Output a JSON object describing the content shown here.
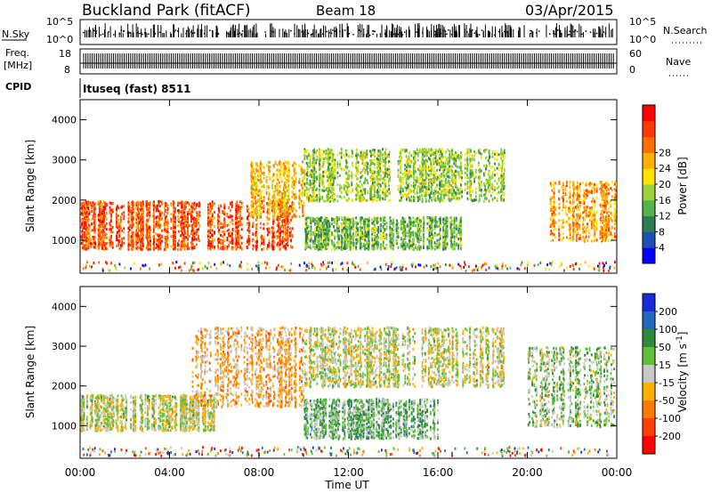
{
  "header": {
    "site": "Buckland Park (fitACF)",
    "beam": "Beam 18",
    "date": "03/Apr/2015"
  },
  "top_labels": {
    "nsky": "N.Sky",
    "nsearch": "N.Search",
    "freq": "Freq.",
    "freq_unit": "[MHz]",
    "nave": "Nave",
    "cpid": "CPID",
    "cpid_value": "Ituseq (fast) 8511",
    "noise_ticks": [
      "10^5",
      "10^0"
    ],
    "freq_ticks": [
      "18",
      "8"
    ],
    "nave_ticks": [
      "60",
      "0"
    ]
  },
  "x_axis": {
    "label": "Time UT",
    "ticks": [
      "00:00",
      "04:00",
      "08:00",
      "12:00",
      "16:00",
      "20:00",
      "00:00"
    ]
  },
  "chart_data": [
    {
      "type": "heatmap",
      "title": "",
      "xlabel": "Time UT",
      "ylabel": "Slant Range [km]",
      "xlim": [
        0,
        24
      ],
      "ylim": [
        180,
        4500
      ],
      "y_ticks": [
        1000,
        2000,
        3000,
        4000
      ],
      "colorbar": {
        "label": "Power [dB]",
        "ticks": [
          "4",
          "8",
          "12",
          "16",
          "20",
          "24",
          "28"
        ],
        "colors": [
          "#0000ff",
          "#1f4fb5",
          "#2e7b55",
          "#52b44a",
          "#9bd238",
          "#ffe400",
          "#ffb000",
          "#ff7000",
          "#ff3a00",
          "#ff0000"
        ]
      },
      "echo_regions": [
        {
          "t_start": 0,
          "t_end": 9.5,
          "range_low": 800,
          "range_high": 2000,
          "value_db": 26
        },
        {
          "t_start": 7.5,
          "t_end": 10,
          "range_low": 1600,
          "range_high": 3000,
          "value_db": 20
        },
        {
          "t_start": 10,
          "t_end": 19,
          "range_low": 2000,
          "range_high": 3300,
          "value_db": 14
        },
        {
          "t_start": 10,
          "t_end": 17,
          "range_low": 800,
          "range_high": 1600,
          "value_db": 12
        },
        {
          "t_start": 21,
          "t_end": 24,
          "range_low": 1000,
          "range_high": 2500,
          "value_db": 22
        }
      ]
    },
    {
      "type": "heatmap",
      "title": "",
      "xlabel": "Time UT",
      "ylabel": "Slant Range [km]",
      "xlim": [
        0,
        24
      ],
      "ylim": [
        180,
        4500
      ],
      "y_ticks": [
        1000,
        2000,
        3000,
        4000
      ],
      "colorbar": {
        "label": "Velocity [m s^-1]",
        "ticks": [
          "200",
          "100",
          "50",
          "15",
          "-15",
          "-50",
          "-100",
          "-200"
        ],
        "colors": [
          "#1a2ad6",
          "#2266c0",
          "#2f8a3a",
          "#5fbf3a",
          "#c8c8c8",
          "#ffb000",
          "#ff7a00",
          "#ff4000",
          "#ff0000"
        ]
      },
      "echo_regions": [
        {
          "t_start": 0,
          "t_end": 6,
          "range_low": 900,
          "range_high": 1800,
          "value_ms": 0
        },
        {
          "t_start": 5,
          "t_end": 10,
          "range_low": 1500,
          "range_high": 3500,
          "value_ms": -60
        },
        {
          "t_start": 10,
          "t_end": 19,
          "range_low": 2000,
          "range_high": 3500,
          "value_ms": 0
        },
        {
          "t_start": 10,
          "t_end": 16,
          "range_low": 700,
          "range_high": 1700,
          "value_ms": 60
        },
        {
          "t_start": 20,
          "t_end": 24,
          "range_low": 1000,
          "range_high": 3000,
          "value_ms": 40
        }
      ]
    }
  ]
}
